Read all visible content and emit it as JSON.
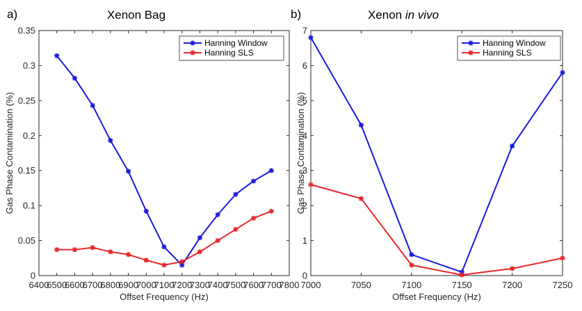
{
  "chart_data": [
    {
      "type": "line",
      "panel_label": "a)",
      "title": "Xenon Bag",
      "title_italic": "",
      "xlabel": "Offset Frequency (Hz)",
      "ylabel": "Gas Phase Contamination (%)",
      "xlim": [
        6400,
        7800
      ],
      "ylim": [
        0,
        0.35
      ],
      "xticks": [
        "6400",
        "6500",
        "6600",
        "6700",
        "6800",
        "6900",
        "7000",
        "7100",
        "7200",
        "7300",
        "7400",
        "7500",
        "7600",
        "7700",
        "7800"
      ],
      "yticks": [
        "0",
        "0.05",
        "0.1",
        "0.15",
        "0.2",
        "0.25",
        "0.3",
        "0.35"
      ],
      "legend_position": "top-right",
      "series": [
        {
          "name": "Hanning Window",
          "color": "#1a1adb",
          "x": [
            6500,
            6600,
            6700,
            6800,
            6900,
            7000,
            7100,
            7200,
            7300,
            7400,
            7500,
            7600,
            7700
          ],
          "y": [
            0.314,
            0.282,
            0.243,
            0.193,
            0.149,
            0.092,
            0.041,
            0.015,
            0.054,
            0.087,
            0.116,
            0.135,
            0.15
          ]
        },
        {
          "name": "Hanning SLS",
          "color": "#e8262a",
          "x": [
            6500,
            6600,
            6700,
            6800,
            6900,
            7000,
            7100,
            7200,
            7300,
            7400,
            7500,
            7600,
            7700
          ],
          "y": [
            0.037,
            0.037,
            0.04,
            0.034,
            0.03,
            0.022,
            0.015,
            0.02,
            0.034,
            0.05,
            0.066,
            0.082,
            0.092
          ]
        }
      ]
    },
    {
      "type": "line",
      "panel_label": "b)",
      "title": "Xenon ",
      "title_italic": "in vivo",
      "xlabel": "Offset Frequency (Hz)",
      "ylabel": "Gas Phase Contamination (%)",
      "xlim": [
        7000,
        7250
      ],
      "ylim": [
        0,
        7
      ],
      "xticks": [
        "7000",
        "7050",
        "7100",
        "7150",
        "7200",
        "7250"
      ],
      "yticks": [
        "0",
        "1",
        "2",
        "3",
        "4",
        "5",
        "6",
        "7"
      ],
      "legend_position": "top-right",
      "series": [
        {
          "name": "Hanning Window",
          "color": "#1a1adb",
          "x": [
            7000,
            7050,
            7100,
            7150,
            7200,
            7250
          ],
          "y": [
            6.8,
            4.3,
            0.6,
            0.1,
            3.7,
            5.8
          ]
        },
        {
          "name": "Hanning SLS",
          "color": "#e8262a",
          "x": [
            7000,
            7050,
            7100,
            7150,
            7200,
            7250
          ],
          "y": [
            2.6,
            2.2,
            0.3,
            0.02,
            0.2,
            0.5
          ]
        }
      ]
    }
  ]
}
